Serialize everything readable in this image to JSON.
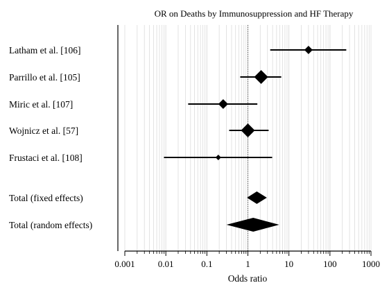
{
  "chart_data": {
    "type": "forest",
    "title": "OR on Deaths by Immunosuppression and HF Therapy",
    "xlabel": "Odds ratio",
    "x_scale": "log",
    "xlim": [
      0.001,
      1000
    ],
    "x_ticks": [
      0.001,
      0.01,
      0.1,
      1,
      10,
      100,
      1000
    ],
    "x_tick_labels": [
      "0.001",
      "0.01",
      "0.1",
      "1",
      "10",
      "100",
      "1000"
    ],
    "reference_line": 1,
    "grid": true,
    "studies": [
      {
        "label": "Latham et al. [106]",
        "or": 30,
        "ci": [
          3.5,
          250
        ],
        "weight": "small"
      },
      {
        "label": "Parrillo et al. [105]",
        "or": 2.1,
        "ci": [
          0.65,
          6.5
        ],
        "weight": "large"
      },
      {
        "label": "Miric et al. [107]",
        "or": 0.25,
        "ci": [
          0.035,
          1.7
        ],
        "weight": "medium"
      },
      {
        "label": "Wojnicz et al. [57]",
        "or": 1.0,
        "ci": [
          0.35,
          3.2
        ],
        "weight": "large"
      },
      {
        "label": "Frustaci et al. [108]",
        "or": 0.19,
        "ci": [
          0.009,
          3.9
        ],
        "weight": "tiny"
      }
    ],
    "totals": [
      {
        "label": "Total (fixed effects)",
        "or": 1.65,
        "ci": [
          0.95,
          2.9
        ]
      },
      {
        "label": "Total (random effects)",
        "or": 1.35,
        "ci": [
          0.3,
          5.8
        ]
      }
    ],
    "marker_color": "#000000"
  }
}
